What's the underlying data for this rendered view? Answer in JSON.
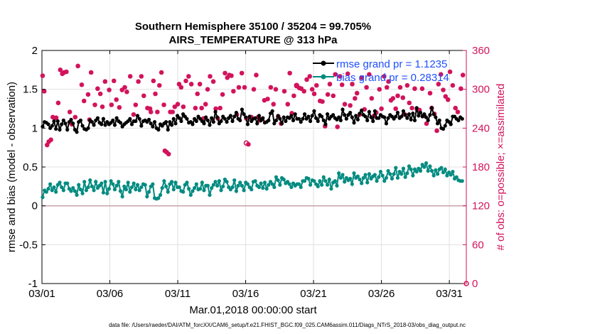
{
  "colors": {
    "rmse": "#000000",
    "bias": "#008b80",
    "obs": "#d2135b",
    "legend_text": "#1f4fff",
    "grid": "#e0e0e0",
    "zero_line": "#c8a0a8"
  },
  "chart_data": {
    "type": "line",
    "title_line1": "Southern Hemisphere 35100 / 35204 = 99.705%",
    "title_line2": "AIRS_TEMPERATURE @ 313 hPa",
    "xlabel": "Mar.01,2018 00:00:00 start",
    "ylabel_left": "rmse and bias (model - observation)",
    "ylabel_right": "# of obs: o=possible; ×=assimilated",
    "footer": "data file: /Users/raeder/DAI/ATM_forcXX/CAM6_setup/f.e21.FHIST_BGC.f09_025.CAM6assim.011/Diags_NTrS_2018-03/obs_diag_output.nc",
    "x_tick_labels": [
      "03/01",
      "03/06",
      "03/11",
      "03/16",
      "03/21",
      "03/26",
      "03/31"
    ],
    "x_tick_days": [
      0,
      5,
      10,
      15,
      20,
      25,
      30
    ],
    "xlim_days": [
      0,
      31.25
    ],
    "ylim_left": [
      -1,
      2
    ],
    "y_ticks_left": [
      "-1",
      "-0.5",
      "0",
      "0.5",
      "1",
      "1.5",
      "2"
    ],
    "ylim_right": [
      0,
      360
    ],
    "y_ticks_right": [
      "0",
      "60",
      "120",
      "180",
      "240",
      "300",
      "360"
    ],
    "grid": true,
    "legend_position": "top-right",
    "series": [
      {
        "name": "rmse grand pr = 1.1235",
        "key": "rmse",
        "values": [
          1.02,
          1.08,
          1.07,
          1.05,
          1.0,
          1.03,
          1.09,
          0.99,
          1.09,
          0.98,
          1.05,
          1.1,
          1.06,
          0.98,
          1.08,
          1.11,
          1.06,
          0.98,
          0.95,
          1.08,
          1.1,
          1.03,
          0.99,
          0.98,
          1.0,
          1.1,
          1.08,
          1.04,
          1.1,
          1.13,
          1.07,
          1.05,
          1.12,
          1.04,
          1.08,
          1.05,
          1.07,
          1.1,
          1.04,
          1.13,
          1.09,
          1.07,
          1.02,
          1.05,
          1.07,
          1.09,
          1.12,
          1.05,
          1.09,
          1.09,
          1.16,
          1.12,
          1.03,
          1.09,
          1.1,
          1.08,
          1.11,
          1.06,
          1.02,
          1.08,
          1.0,
          0.98,
          1.05,
          1.03,
          1.06,
          1.08,
          0.98,
          1.08,
          1.04,
          1.12,
          1.06,
          1.16,
          1.13,
          1.09,
          1.18,
          1.15,
          1.12,
          1.07,
          1.08,
          1.05,
          1.12,
          1.09,
          1.15,
          1.12,
          1.09,
          1.06,
          1.14,
          1.1,
          1.04,
          1.13,
          1.08,
          1.21,
          1.14,
          1.06,
          1.09,
          1.15,
          1.12,
          1.08,
          1.13,
          1.16,
          1.09,
          1.15,
          1.2,
          1.12,
          1.1,
          1.24,
          1.18,
          1.14,
          1.05,
          1.15,
          1.09,
          1.12,
          1.13,
          1.06,
          1.16,
          1.1,
          1.13,
          1.07,
          1.08,
          1.1,
          1.19,
          1.22,
          1.06,
          1.1,
          1.16,
          1.12,
          1.06,
          1.14,
          1.09,
          1.14,
          1.13,
          1.16,
          1.1,
          1.18,
          1.12,
          1.12,
          1.08,
          1.12,
          1.18,
          1.12,
          1.15,
          1.09,
          1.16,
          1.22,
          1.13,
          1.09,
          1.17,
          1.15,
          1.1,
          1.05,
          1.18,
          1.12,
          1.15,
          1.17,
          1.13,
          1.11,
          1.14,
          1.1,
          1.24,
          1.17,
          1.12,
          1.17,
          1.2,
          1.14,
          1.07,
          1.16,
          1.11,
          1.19,
          1.23,
          1.17,
          1.15,
          1.1,
          1.21,
          1.14,
          1.09,
          1.22,
          1.13,
          1.13,
          1.17,
          1.15,
          1.14,
          1.06,
          1.13,
          1.17,
          1.15,
          1.12,
          1.15,
          1.2,
          1.13,
          1.15,
          1.22,
          1.17,
          1.13,
          1.18,
          1.11,
          1.19,
          1.1,
          1.26,
          1.16,
          1.2,
          1.15,
          1.18,
          1.14,
          1.1,
          1.17,
          1.26,
          1.18,
          1.14,
          1.06,
          1.1,
          1.0,
          0.99,
          1.03,
          1.1,
          1.08,
          1.05,
          1.15,
          1.15,
          1.12,
          1.1,
          1.14,
          1.12
        ]
      },
      {
        "name": "bias grand pr = 0.28314",
        "key": "bias",
        "values": [
          0.11,
          0.2,
          0.18,
          0.22,
          0.28,
          0.2,
          0.24,
          0.18,
          0.27,
          0.3,
          0.24,
          0.2,
          0.29,
          0.29,
          0.22,
          0.19,
          0.23,
          0.19,
          0.14,
          0.27,
          0.21,
          0.16,
          0.31,
          0.2,
          0.24,
          0.33,
          0.25,
          0.2,
          0.31,
          0.23,
          0.26,
          0.29,
          0.17,
          0.31,
          0.16,
          0.22,
          0.32,
          0.28,
          0.21,
          0.26,
          0.31,
          0.19,
          0.12,
          0.25,
          0.21,
          0.3,
          0.18,
          0.24,
          0.29,
          0.21,
          0.27,
          0.2,
          0.24,
          0.28,
          0.27,
          0.12,
          0.18,
          0.25,
          0.28,
          0.1,
          0.09,
          0.1,
          0.14,
          0.23,
          0.32,
          0.25,
          0.18,
          0.28,
          0.31,
          0.21,
          0.3,
          0.24,
          0.24,
          0.19,
          0.18,
          0.27,
          0.3,
          0.22,
          0.14,
          0.19,
          0.23,
          0.28,
          0.21,
          0.22,
          0.3,
          0.2,
          0.26,
          0.26,
          0.14,
          0.23,
          0.27,
          0.31,
          0.26,
          0.32,
          0.2,
          0.25,
          0.34,
          0.31,
          0.24,
          0.21,
          0.24,
          0.33,
          0.19,
          0.26,
          0.3,
          0.26,
          0.2,
          0.3,
          0.28,
          0.24,
          0.21,
          0.31,
          0.32,
          0.26,
          0.24,
          0.29,
          0.23,
          0.3,
          0.22,
          0.27,
          0.31,
          0.28,
          0.24,
          0.37,
          0.33,
          0.27,
          0.36,
          0.34,
          0.29,
          0.31,
          0.28,
          0.24,
          0.29,
          0.26,
          0.28,
          0.28,
          0.24,
          0.32,
          0.32,
          0.36,
          0.35,
          0.27,
          0.33,
          0.32,
          0.28,
          0.25,
          0.32,
          0.27,
          0.37,
          0.32,
          0.27,
          0.34,
          0.22,
          0.3,
          0.32,
          0.26,
          0.42,
          0.36,
          0.4,
          0.31,
          0.36,
          0.33,
          0.35,
          0.28,
          0.42,
          0.36,
          0.38,
          0.34,
          0.29,
          0.36,
          0.4,
          0.3,
          0.41,
          0.35,
          0.38,
          0.4,
          0.32,
          0.37,
          0.44,
          0.39,
          0.32,
          0.36,
          0.45,
          0.41,
          0.35,
          0.41,
          0.49,
          0.36,
          0.44,
          0.41,
          0.48,
          0.37,
          0.42,
          0.51,
          0.47,
          0.39,
          0.47,
          0.44,
          0.48,
          0.45,
          0.53,
          0.5,
          0.55,
          0.45,
          0.51,
          0.45,
          0.39,
          0.46,
          0.41,
          0.47,
          0.49,
          0.43,
          0.47,
          0.39,
          0.43,
          0.4,
          0.44,
          0.35,
          0.37,
          0.33,
          0.32,
          0.32
        ]
      }
    ],
    "obs_assimilated_points": [
      [
        0.05,
        321
      ],
      [
        0.17,
        297
      ],
      [
        0.38,
        214
      ],
      [
        0.5,
        219
      ],
      [
        0.66,
        222
      ],
      [
        0.8,
        257
      ],
      [
        1.05,
        256
      ],
      [
        1.2,
        279
      ],
      [
        1.35,
        330
      ],
      [
        1.5,
        324
      ],
      [
        1.63,
        326
      ],
      [
        1.8,
        327
      ],
      [
        2.05,
        265
      ],
      [
        2.2,
        246
      ],
      [
        2.45,
        257
      ],
      [
        2.65,
        336
      ],
      [
        2.93,
        307
      ],
      [
        3.1,
        282
      ],
      [
        3.4,
        292
      ],
      [
        3.5,
        253
      ],
      [
        3.62,
        326
      ],
      [
        3.9,
        276
      ],
      [
        4.1,
        301
      ],
      [
        4.3,
        293
      ],
      [
        4.45,
        273
      ],
      [
        4.65,
        312
      ],
      [
        4.95,
        299
      ],
      [
        5.12,
        276
      ],
      [
        5.3,
        313
      ],
      [
        5.48,
        284
      ],
      [
        5.7,
        272
      ],
      [
        5.9,
        299
      ],
      [
        6.1,
        303
      ],
      [
        6.25,
        296
      ],
      [
        6.5,
        320
      ],
      [
        6.75,
        261
      ],
      [
        6.9,
        276
      ],
      [
        7.1,
        312
      ],
      [
        7.32,
        320
      ],
      [
        7.5,
        290
      ],
      [
        7.77,
        271
      ],
      [
        7.96,
        270
      ],
      [
        8.02,
        265
      ],
      [
        8.21,
        313
      ],
      [
        8.35,
        293
      ],
      [
        8.5,
        265
      ],
      [
        8.65,
        306
      ],
      [
        8.8,
        326
      ],
      [
        8.98,
        276
      ],
      [
        9.05,
        205
      ],
      [
        9.18,
        203
      ],
      [
        9.33,
        200
      ],
      [
        9.45,
        265
      ],
      [
        9.62,
        265
      ],
      [
        9.78,
        273
      ],
      [
        10.0,
        277
      ],
      [
        10.1,
        308
      ],
      [
        10.25,
        303
      ],
      [
        10.41,
        273
      ],
      [
        10.6,
        313
      ],
      [
        10.8,
        320
      ],
      [
        11.0,
        308
      ],
      [
        11.3,
        271
      ],
      [
        11.45,
        293
      ],
      [
        11.63,
        308
      ],
      [
        11.76,
        271
      ],
      [
        11.9,
        255
      ],
      [
        12.05,
        277
      ],
      [
        12.2,
        300
      ],
      [
        12.38,
        320
      ],
      [
        12.62,
        312
      ],
      [
        12.8,
        270
      ],
      [
        12.95,
        255
      ],
      [
        13.12,
        271
      ],
      [
        13.3,
        292
      ],
      [
        13.48,
        325
      ],
      [
        13.65,
        318
      ],
      [
        13.8,
        322
      ],
      [
        13.95,
        321
      ],
      [
        14.1,
        297
      ],
      [
        14.35,
        261
      ],
      [
        14.5,
        303
      ],
      [
        14.72,
        325
      ],
      [
        14.92,
        303
      ],
      [
        15.05,
        255
      ],
      [
        15.2,
        215
      ],
      [
        15.42,
        257
      ],
      [
        15.6,
        300
      ],
      [
        15.78,
        322
      ],
      [
        15.92,
        257
      ],
      [
        16.05,
        252
      ],
      [
        16.2,
        254
      ],
      [
        16.38,
        283
      ],
      [
        16.62,
        285
      ],
      [
        16.85,
        303
      ],
      [
        17.05,
        277
      ],
      [
        17.22,
        300
      ],
      [
        17.4,
        258
      ],
      [
        17.61,
        247
      ],
      [
        17.85,
        297
      ],
      [
        18.1,
        277
      ],
      [
        18.25,
        325
      ],
      [
        18.4,
        263
      ],
      [
        18.55,
        290
      ],
      [
        18.75,
        305
      ],
      [
        18.95,
        302
      ],
      [
        19.1,
        301
      ],
      [
        19.3,
        297
      ],
      [
        19.5,
        315
      ],
      [
        19.72,
        320
      ],
      [
        19.9,
        300
      ],
      [
        20.05,
        293
      ],
      [
        20.22,
        306
      ],
      [
        20.48,
        282
      ],
      [
        20.65,
        281
      ],
      [
        20.85,
        243
      ],
      [
        21.05,
        292
      ],
      [
        21.2,
        308
      ],
      [
        21.45,
        290
      ],
      [
        21.6,
        323
      ],
      [
        21.76,
        242
      ],
      [
        21.95,
        320
      ],
      [
        22.1,
        307
      ],
      [
        22.3,
        277
      ],
      [
        22.52,
        324
      ],
      [
        22.7,
        275
      ],
      [
        22.85,
        308
      ],
      [
        23.05,
        286
      ],
      [
        23.2,
        294
      ],
      [
        23.4,
        261
      ],
      [
        23.55,
        318
      ],
      [
        23.75,
        269
      ],
      [
        23.9,
        303
      ],
      [
        24.1,
        323
      ],
      [
        24.28,
        286
      ],
      [
        24.45,
        259
      ],
      [
        24.62,
        264
      ],
      [
        24.85,
        300
      ],
      [
        25.0,
        270
      ],
      [
        25.2,
        320
      ],
      [
        25.4,
        303
      ],
      [
        25.52,
        312
      ],
      [
        25.7,
        283
      ],
      [
        25.85,
        286
      ],
      [
        26.05,
        270
      ],
      [
        26.2,
        290
      ],
      [
        26.38,
        303
      ],
      [
        26.58,
        287
      ],
      [
        26.73,
        261
      ],
      [
        26.9,
        306
      ],
      [
        27.05,
        279
      ],
      [
        27.25,
        271
      ],
      [
        27.45,
        301
      ],
      [
        27.62,
        269
      ],
      [
        27.8,
        268
      ],
      [
        28.0,
        301
      ],
      [
        28.15,
        259
      ],
      [
        28.32,
        247
      ],
      [
        28.58,
        294
      ],
      [
        28.7,
        271
      ],
      [
        28.9,
        262
      ],
      [
        29.08,
        236
      ],
      [
        29.2,
        308
      ],
      [
        29.38,
        323
      ],
      [
        29.55,
        299
      ],
      [
        29.72,
        289
      ],
      [
        29.9,
        284
      ],
      [
        30.05,
        327
      ],
      [
        30.25,
        306
      ],
      [
        30.45,
        271
      ],
      [
        30.62,
        265
      ],
      [
        30.85,
        301
      ],
      [
        31.0,
        322
      ]
    ],
    "obs_possible_points": [
      [
        15.05,
        217
      ],
      [
        18.75,
        306
      ],
      [
        31.25,
        0
      ]
    ]
  }
}
